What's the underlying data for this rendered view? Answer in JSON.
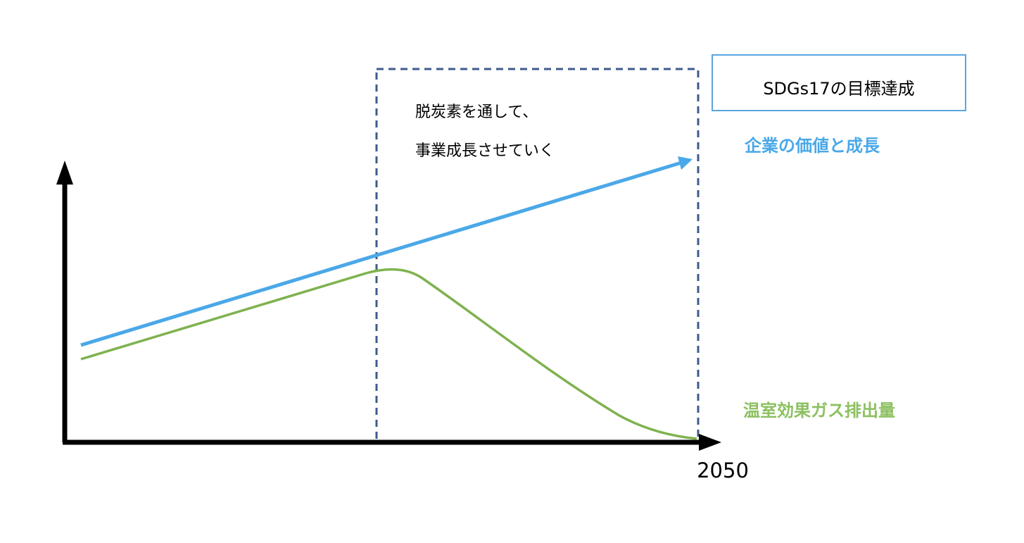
{
  "goal_box": {
    "title": "SDGs17の目標達成"
  },
  "annotation": {
    "lines": [
      "脱炭素を通して、",
      "事業成長させていく"
    ]
  },
  "curves": [
    {
      "label": "企業の価値と成長"
    },
    {
      "label": "温室効果ガス排出量"
    }
  ],
  "x_axis": {
    "label": "2050"
  }
}
